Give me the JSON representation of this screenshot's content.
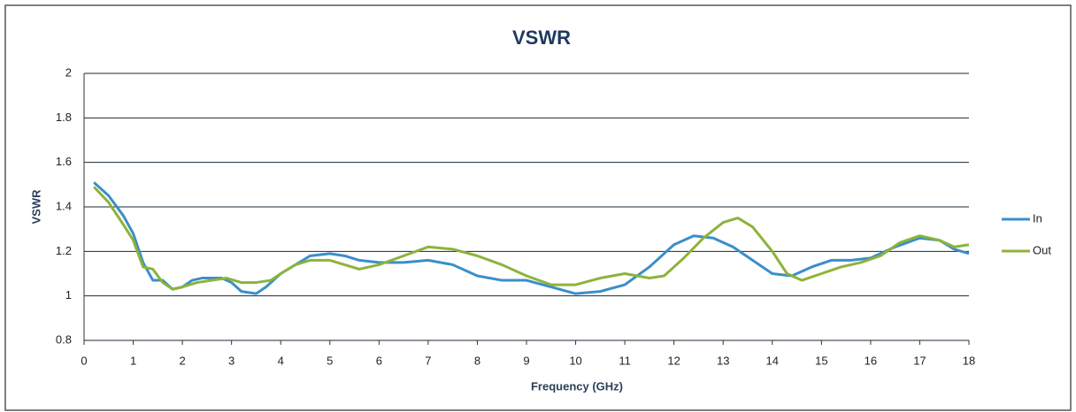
{
  "chart_data": {
    "type": "line",
    "title": "VSWR",
    "xlabel": "Frequency (GHz)",
    "ylabel": "VSWR",
    "xlim": [
      0,
      18
    ],
    "xticks": [
      0,
      1,
      2,
      3,
      4,
      5,
      6,
      7,
      8,
      9,
      10,
      11,
      12,
      13,
      14,
      15,
      16,
      17,
      18
    ],
    "ylim": [
      0.8,
      2
    ],
    "yticks": [
      0.8,
      1,
      1.2,
      1.4,
      1.6,
      1.8,
      2
    ],
    "grid": true,
    "legend": "right",
    "series": [
      {
        "name": "In",
        "color": "#3a8fc8",
        "x": [
          0.2,
          0.5,
          0.8,
          1.0,
          1.2,
          1.4,
          1.6,
          1.8,
          2.0,
          2.2,
          2.4,
          2.6,
          2.8,
          3.0,
          3.2,
          3.5,
          3.7,
          4.0,
          4.3,
          4.6,
          5.0,
          5.3,
          5.6,
          6.0,
          6.5,
          7.0,
          7.5,
          8.0,
          8.5,
          9.0,
          9.5,
          10.0,
          10.5,
          11.0,
          11.5,
          12.0,
          12.4,
          12.8,
          13.2,
          13.6,
          14.0,
          14.4,
          14.8,
          15.2,
          15.6,
          16.0,
          16.5,
          17.0,
          17.4,
          17.7,
          18.0
        ],
        "values": [
          1.51,
          1.45,
          1.36,
          1.28,
          1.15,
          1.07,
          1.07,
          1.03,
          1.04,
          1.07,
          1.08,
          1.08,
          1.08,
          1.06,
          1.02,
          1.01,
          1.04,
          1.1,
          1.14,
          1.18,
          1.19,
          1.18,
          1.16,
          1.15,
          1.15,
          1.16,
          1.14,
          1.09,
          1.07,
          1.07,
          1.04,
          1.01,
          1.02,
          1.05,
          1.13,
          1.23,
          1.27,
          1.26,
          1.22,
          1.16,
          1.1,
          1.09,
          1.13,
          1.16,
          1.16,
          1.17,
          1.22,
          1.26,
          1.25,
          1.21,
          1.19
        ]
      },
      {
        "name": "Out",
        "color": "#8db33b",
        "x": [
          0.2,
          0.5,
          0.8,
          1.0,
          1.2,
          1.4,
          1.6,
          1.8,
          2.0,
          2.3,
          2.6,
          2.9,
          3.2,
          3.5,
          3.8,
          4.0,
          4.3,
          4.6,
          5.0,
          5.3,
          5.6,
          6.0,
          6.5,
          7.0,
          7.5,
          8.0,
          8.5,
          9.0,
          9.5,
          10.0,
          10.5,
          11.0,
          11.5,
          11.8,
          12.2,
          12.6,
          13.0,
          13.3,
          13.6,
          14.0,
          14.3,
          14.6,
          15.0,
          15.4,
          15.8,
          16.2,
          16.6,
          17.0,
          17.4,
          17.7,
          18.0
        ],
        "values": [
          1.49,
          1.42,
          1.32,
          1.25,
          1.13,
          1.12,
          1.06,
          1.03,
          1.04,
          1.06,
          1.07,
          1.08,
          1.06,
          1.06,
          1.07,
          1.1,
          1.14,
          1.16,
          1.16,
          1.14,
          1.12,
          1.14,
          1.18,
          1.22,
          1.21,
          1.18,
          1.14,
          1.09,
          1.05,
          1.05,
          1.08,
          1.1,
          1.08,
          1.09,
          1.17,
          1.26,
          1.33,
          1.35,
          1.31,
          1.2,
          1.1,
          1.07,
          1.1,
          1.13,
          1.15,
          1.18,
          1.24,
          1.27,
          1.25,
          1.22,
          1.23
        ]
      }
    ]
  }
}
